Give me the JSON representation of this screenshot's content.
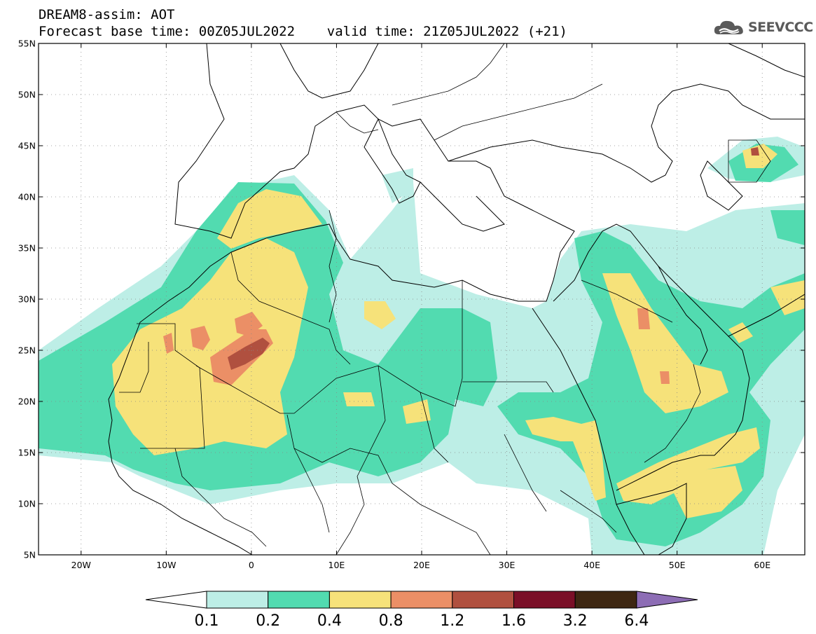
{
  "header": {
    "title_line1": "DREAM8-assim: AOT",
    "title_line2": "Forecast base time: 00Z05JUL2022    valid time: 21Z05JUL2022 (+21)",
    "logo_text": "SEEVCCC"
  },
  "map": {
    "lon_range": [
      -25,
      65
    ],
    "lat_range": [
      5,
      55
    ],
    "lat_ticks": [
      {
        "value": 55,
        "label": "55N"
      },
      {
        "value": 50,
        "label": "50N"
      },
      {
        "value": 45,
        "label": "45N"
      },
      {
        "value": 40,
        "label": "40N"
      },
      {
        "value": 35,
        "label": "35N"
      },
      {
        "value": 30,
        "label": "30N"
      },
      {
        "value": 25,
        "label": "25N"
      },
      {
        "value": 20,
        "label": "20N"
      },
      {
        "value": 15,
        "label": "15N"
      },
      {
        "value": 10,
        "label": "10N"
      },
      {
        "value": 5,
        "label": "5N"
      }
    ],
    "lon_ticks": [
      {
        "value": -20,
        "label": "20W"
      },
      {
        "value": -10,
        "label": "10W"
      },
      {
        "value": 0,
        "label": "0"
      },
      {
        "value": 10,
        "label": "10E"
      },
      {
        "value": 20,
        "label": "20E"
      },
      {
        "value": 30,
        "label": "30E"
      },
      {
        "value": 40,
        "label": "40E"
      },
      {
        "value": 50,
        "label": "50E"
      },
      {
        "value": 60,
        "label": "60E"
      }
    ],
    "grid": true
  },
  "colorbar": {
    "labels": [
      "0.1",
      "0.2",
      "0.4",
      "0.8",
      "1.2",
      "1.6",
      "3.2",
      "6.4"
    ],
    "colors": [
      "#bdeee6",
      "#52dbb0",
      "#f6e27a",
      "#eb8f66",
      "#b0503f",
      "#7a0f27",
      "#3e2712"
    ],
    "max_arrow_color": "#8d6db5",
    "min_arrow_color": "#ffffff"
  }
}
